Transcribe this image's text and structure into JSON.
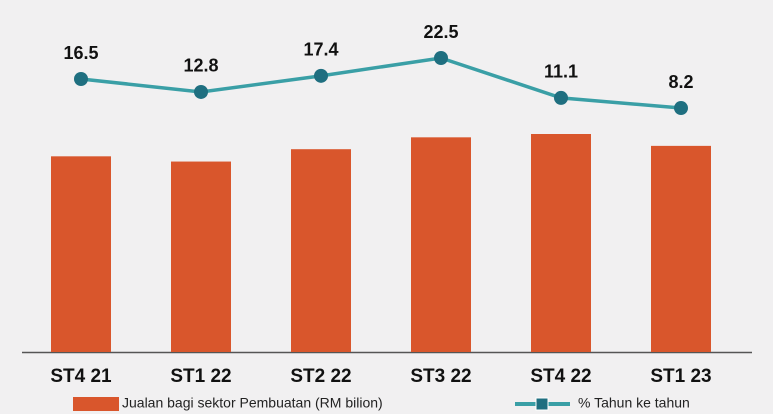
{
  "chart_data": {
    "type": "bar",
    "categories": [
      "ST4 21",
      "ST1 22",
      "ST2 22",
      "ST3 22",
      "ST4 22",
      "ST1 23"
    ],
    "series": [
      {
        "name": "Jualan bagi sektor Pembuatan (RM bilion)",
        "type": "bar",
        "color": "#d9562c",
        "values": [
          412,
          401,
          427,
          452,
          459,
          434
        ]
      },
      {
        "name": "% Tahun ke tahun",
        "type": "line",
        "axis": "y2",
        "color": "#3a9fa6",
        "marker_color": "#1f6f80",
        "values": [
          16.5,
          12.8,
          17.4,
          22.5,
          11.1,
          8.2
        ]
      }
    ]
  }
}
